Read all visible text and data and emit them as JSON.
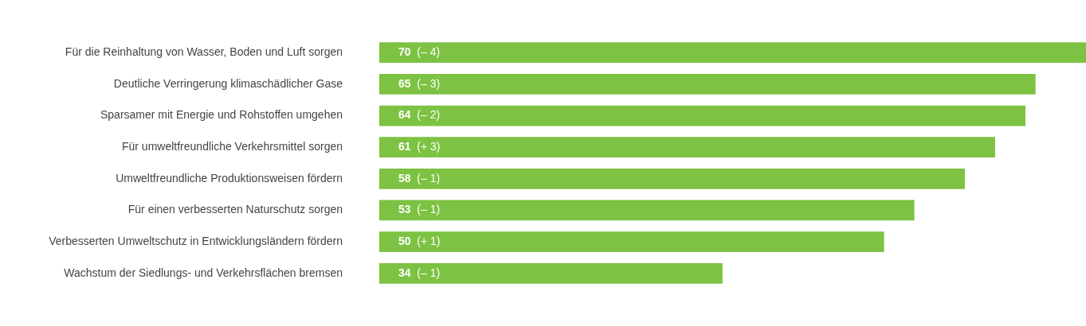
{
  "chart_data": {
    "type": "bar",
    "orientation": "horizontal",
    "categories": [
      "Für die Reinhaltung von Wasser, Boden und Luft sorgen",
      "Deutliche Verringerung klimaschädlicher Gase",
      "Sparsamer mit Energie und Rohstoffen umgehen",
      "Für umweltfreundliche Verkehrsmittel sorgen",
      "Umweltfreundliche Produktionsweisen fördern",
      "Für einen verbesserten Naturschutz sorgen",
      "Verbesserten Umweltschutz in Entwicklungsländern fördern",
      "Wachstum der Siedlungs- und Verkehrsflächen bremsen"
    ],
    "values": [
      70,
      65,
      64,
      61,
      58,
      53,
      50,
      34
    ],
    "value_labels": [
      "70 (– 4)",
      "65 (– 3)",
      "64 (– 2)",
      "61 (+ 3)",
      "58 (– 1)",
      "53 (– 1)",
      "50 (+ 1)",
      "34 (– 1)"
    ],
    "color": "#7dc242"
  }
}
